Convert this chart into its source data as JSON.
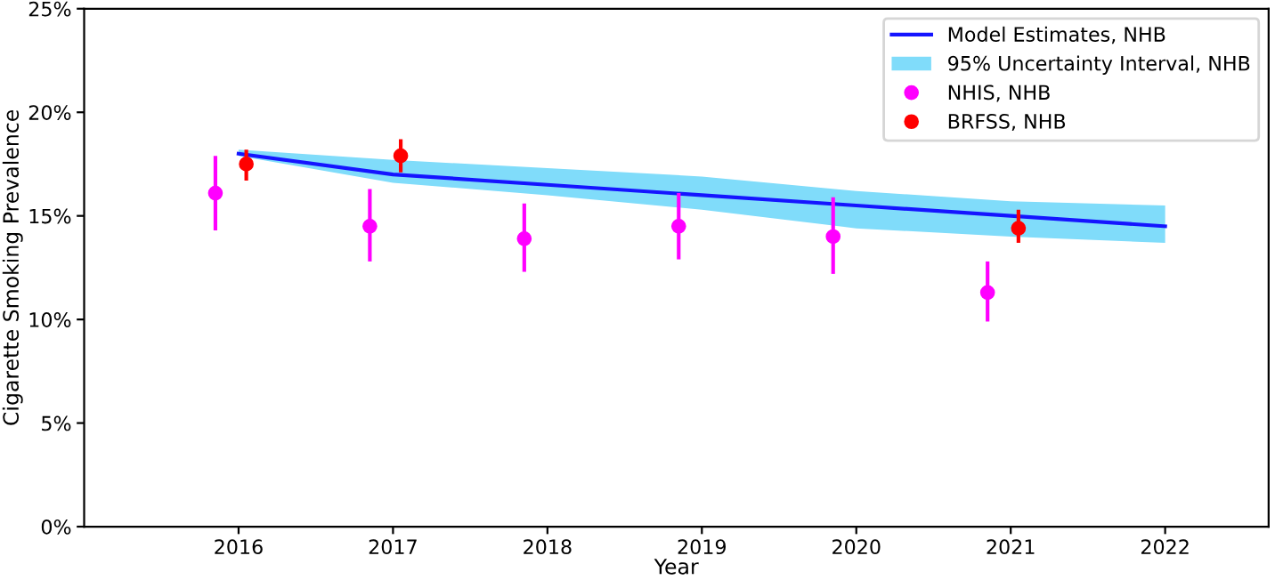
{
  "chart_data": {
    "type": "line",
    "xlabel": "Year",
    "ylabel": "Cigarette Smoking Prevalence",
    "xlim": [
      2015.0,
      2022.67
    ],
    "xticks": [
      2016,
      2017,
      2018,
      2019,
      2020,
      2021,
      2022
    ],
    "ylim": [
      0,
      25
    ],
    "yticks": [
      {
        "value": 0,
        "label": "0%"
      },
      {
        "value": 5,
        "label": "5%"
      },
      {
        "value": 10,
        "label": "10%"
      },
      {
        "value": 15,
        "label": "15%"
      },
      {
        "value": 20,
        "label": "20%"
      },
      {
        "value": 25,
        "label": "25%"
      }
    ],
    "grid": false,
    "legend": "top right",
    "series": [
      {
        "name": "Model Estimates, NHB",
        "color": "#1515ff",
        "marker": "none",
        "line_style": "solid",
        "x": [
          2016,
          2017,
          2018,
          2019,
          2020,
          2021,
          2022
        ],
        "values": [
          18.0,
          17.0,
          16.5,
          16.0,
          15.5,
          15.0,
          14.5
        ],
        "lower": [
          17.9,
          16.6,
          16.0,
          15.3,
          14.4,
          14.0,
          13.7
        ],
        "upper": [
          18.2,
          17.7,
          17.3,
          16.9,
          16.2,
          15.7,
          15.5
        ]
      },
      {
        "name": "95% Uncertainty Interval, NHB",
        "type": "area",
        "color": "#80dcfa"
      },
      {
        "name": "NHIS, NHB",
        "type": "scatter",
        "color": "#ff00ff",
        "marker": "circle",
        "x": [
          2015.85,
          2016.85,
          2017.85,
          2018.85,
          2019.85,
          2020.85
        ],
        "values": [
          16.1,
          14.5,
          13.9,
          14.5,
          14.0,
          11.3
        ],
        "errors": [
          [
            14.3,
            17.9
          ],
          [
            12.8,
            16.3
          ],
          [
            12.3,
            15.6
          ],
          [
            12.9,
            16.1
          ],
          [
            12.2,
            15.9
          ],
          [
            9.9,
            12.8
          ]
        ]
      },
      {
        "name": "BRFSS, NHB",
        "type": "scatter",
        "color": "#ff0000",
        "marker": "circle",
        "x": [
          2016.05,
          2017.05,
          2021.05
        ],
        "values": [
          17.5,
          17.9,
          14.4
        ],
        "errors": [
          [
            16.7,
            18.2
          ],
          [
            17.1,
            18.7
          ],
          [
            13.7,
            15.3
          ]
        ]
      }
    ]
  }
}
